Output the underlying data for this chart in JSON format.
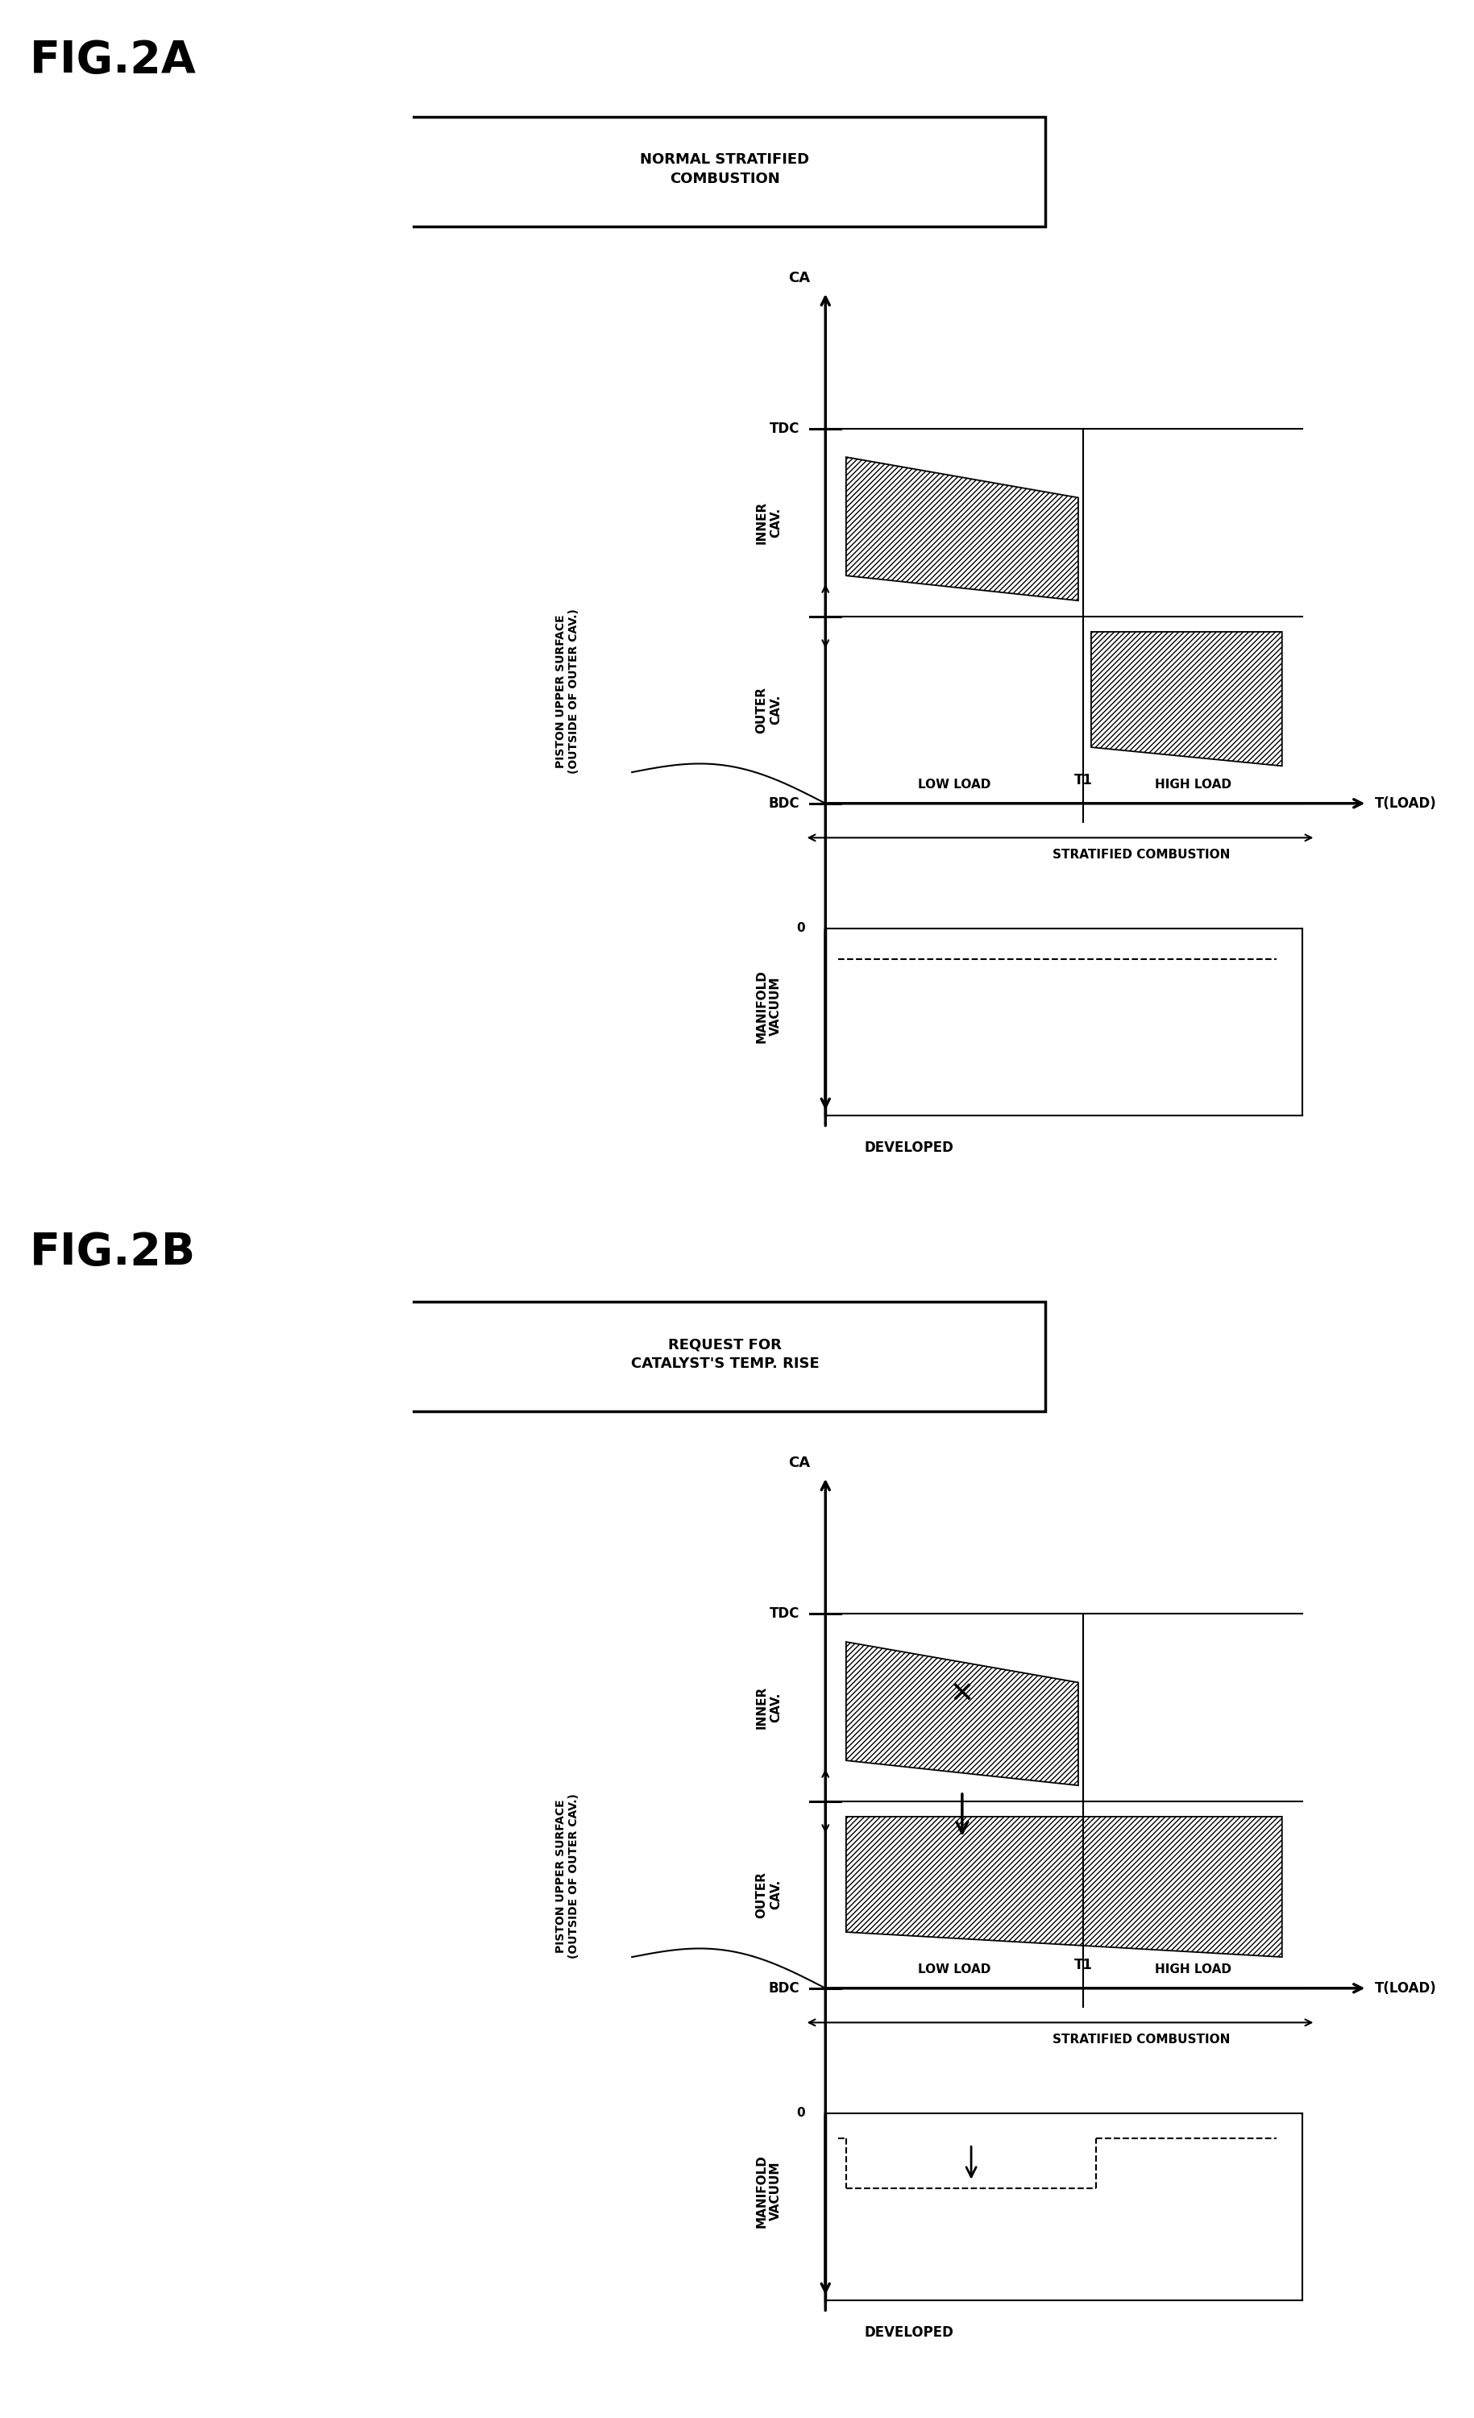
{
  "fig2a_title": "FIG.2A",
  "fig2b_title": "FIG.2B",
  "fig2a_label": "NORMAL STRATIFIED\nCOMBUSTION",
  "fig2b_label": "REQUEST FOR\nCATALYST'S TEMP. RISE",
  "ca_label": "CA",
  "tdc_label": "TDC",
  "bdc_label": "BDC",
  "inner_cav_label": "INNER\nCAV.",
  "outer_cav_label": "OUTER\nCAV.",
  "piston_label": "PISTON UPPER SURFACE\n(OUTSIDE OF OUTER CAV.)",
  "manifold_label": "MANIFOLD\nVACUUM",
  "developed_label": "DEVELOPED",
  "low_load_label": "LOW LOAD",
  "high_load_label": "HIGH LOAD",
  "t_load_label": "T(LOAD)",
  "t1_label": "T1",
  "stratified_label": "STRATIFIED COMBUSTION",
  "bg_color": "#ffffff",
  "line_color": "#000000"
}
